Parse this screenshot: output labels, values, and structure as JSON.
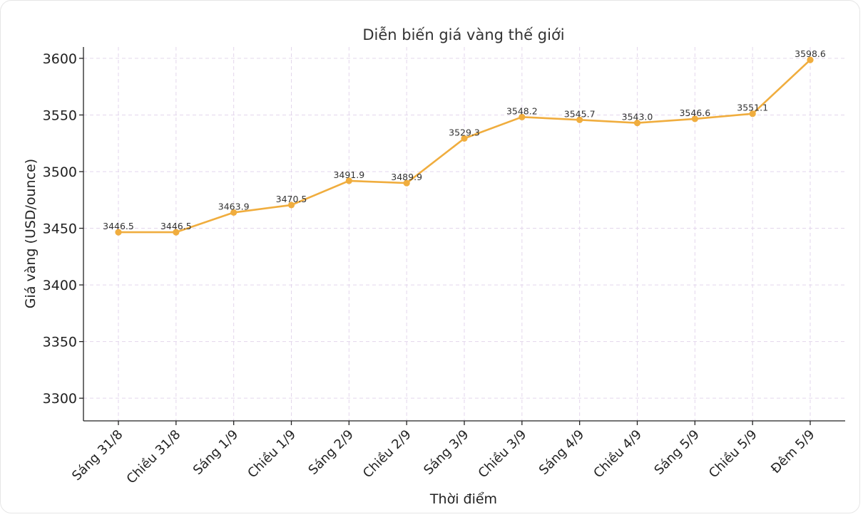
{
  "chart_data": {
    "type": "line",
    "title": "Diễn biến giá vàng thế giới",
    "xlabel": "Thời điểm",
    "ylabel": "Giá vàng (USD/ounce)",
    "categories": [
      "Sáng 31/8",
      "Chiều 31/8",
      "Sáng 1/9",
      "Chiều 1/9",
      "Sáng 2/9",
      "Chiều 2/9",
      "Sáng 3/9",
      "Chiều 3/9",
      "Sáng 4/9",
      "Chiều 4/9",
      "Sáng 5/9",
      "Chiều 5/9",
      "Đêm 5/9"
    ],
    "values": [
      3446.5,
      3446.5,
      3463.9,
      3470.5,
      3491.9,
      3489.9,
      3529.3,
      3548.2,
      3545.7,
      3543.0,
      3546.6,
      3551.1,
      3598.6
    ],
    "data_labels": [
      "3446.5",
      "3446.5",
      "3463.9",
      "3470.5",
      "3491.9",
      "3489.9",
      "3529.3",
      "3548.2",
      "3545.7",
      "3543.0",
      "3546.6",
      "3551.1",
      "3598.6"
    ],
    "yticks": [
      "3300",
      "3350",
      "3400",
      "3450",
      "3500",
      "3550",
      "3600"
    ],
    "ylim": [
      3280,
      3610
    ],
    "grid": true,
    "line_color": "#f0ad3e",
    "marker_color": "#f0ad3e"
  }
}
